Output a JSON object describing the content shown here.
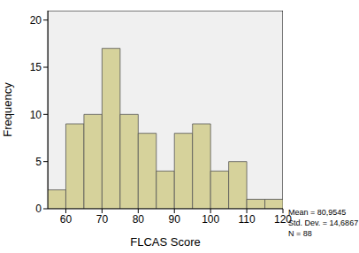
{
  "chart_data": {
    "type": "histogram",
    "x_label": "FLCAS Score",
    "y_label": "Frequency",
    "bins": [
      55,
      60,
      65,
      70,
      75,
      80,
      85,
      90,
      95,
      100,
      105,
      110,
      115,
      120
    ],
    "values": [
      2,
      9,
      10,
      17,
      10,
      8,
      4,
      8,
      9,
      4,
      5,
      1,
      1
    ],
    "color": "#d6d29b",
    "xlim": [
      55,
      120
    ],
    "xticks": [
      60,
      70,
      80,
      90,
      100,
      110,
      120
    ],
    "ylim": [
      0,
      21
    ],
    "yticks": [
      0,
      5,
      10,
      15,
      20
    ],
    "annotations": [
      "Mean = 80,9545",
      "Std. Dev. = 14,6867",
      "N = 88"
    ]
  }
}
